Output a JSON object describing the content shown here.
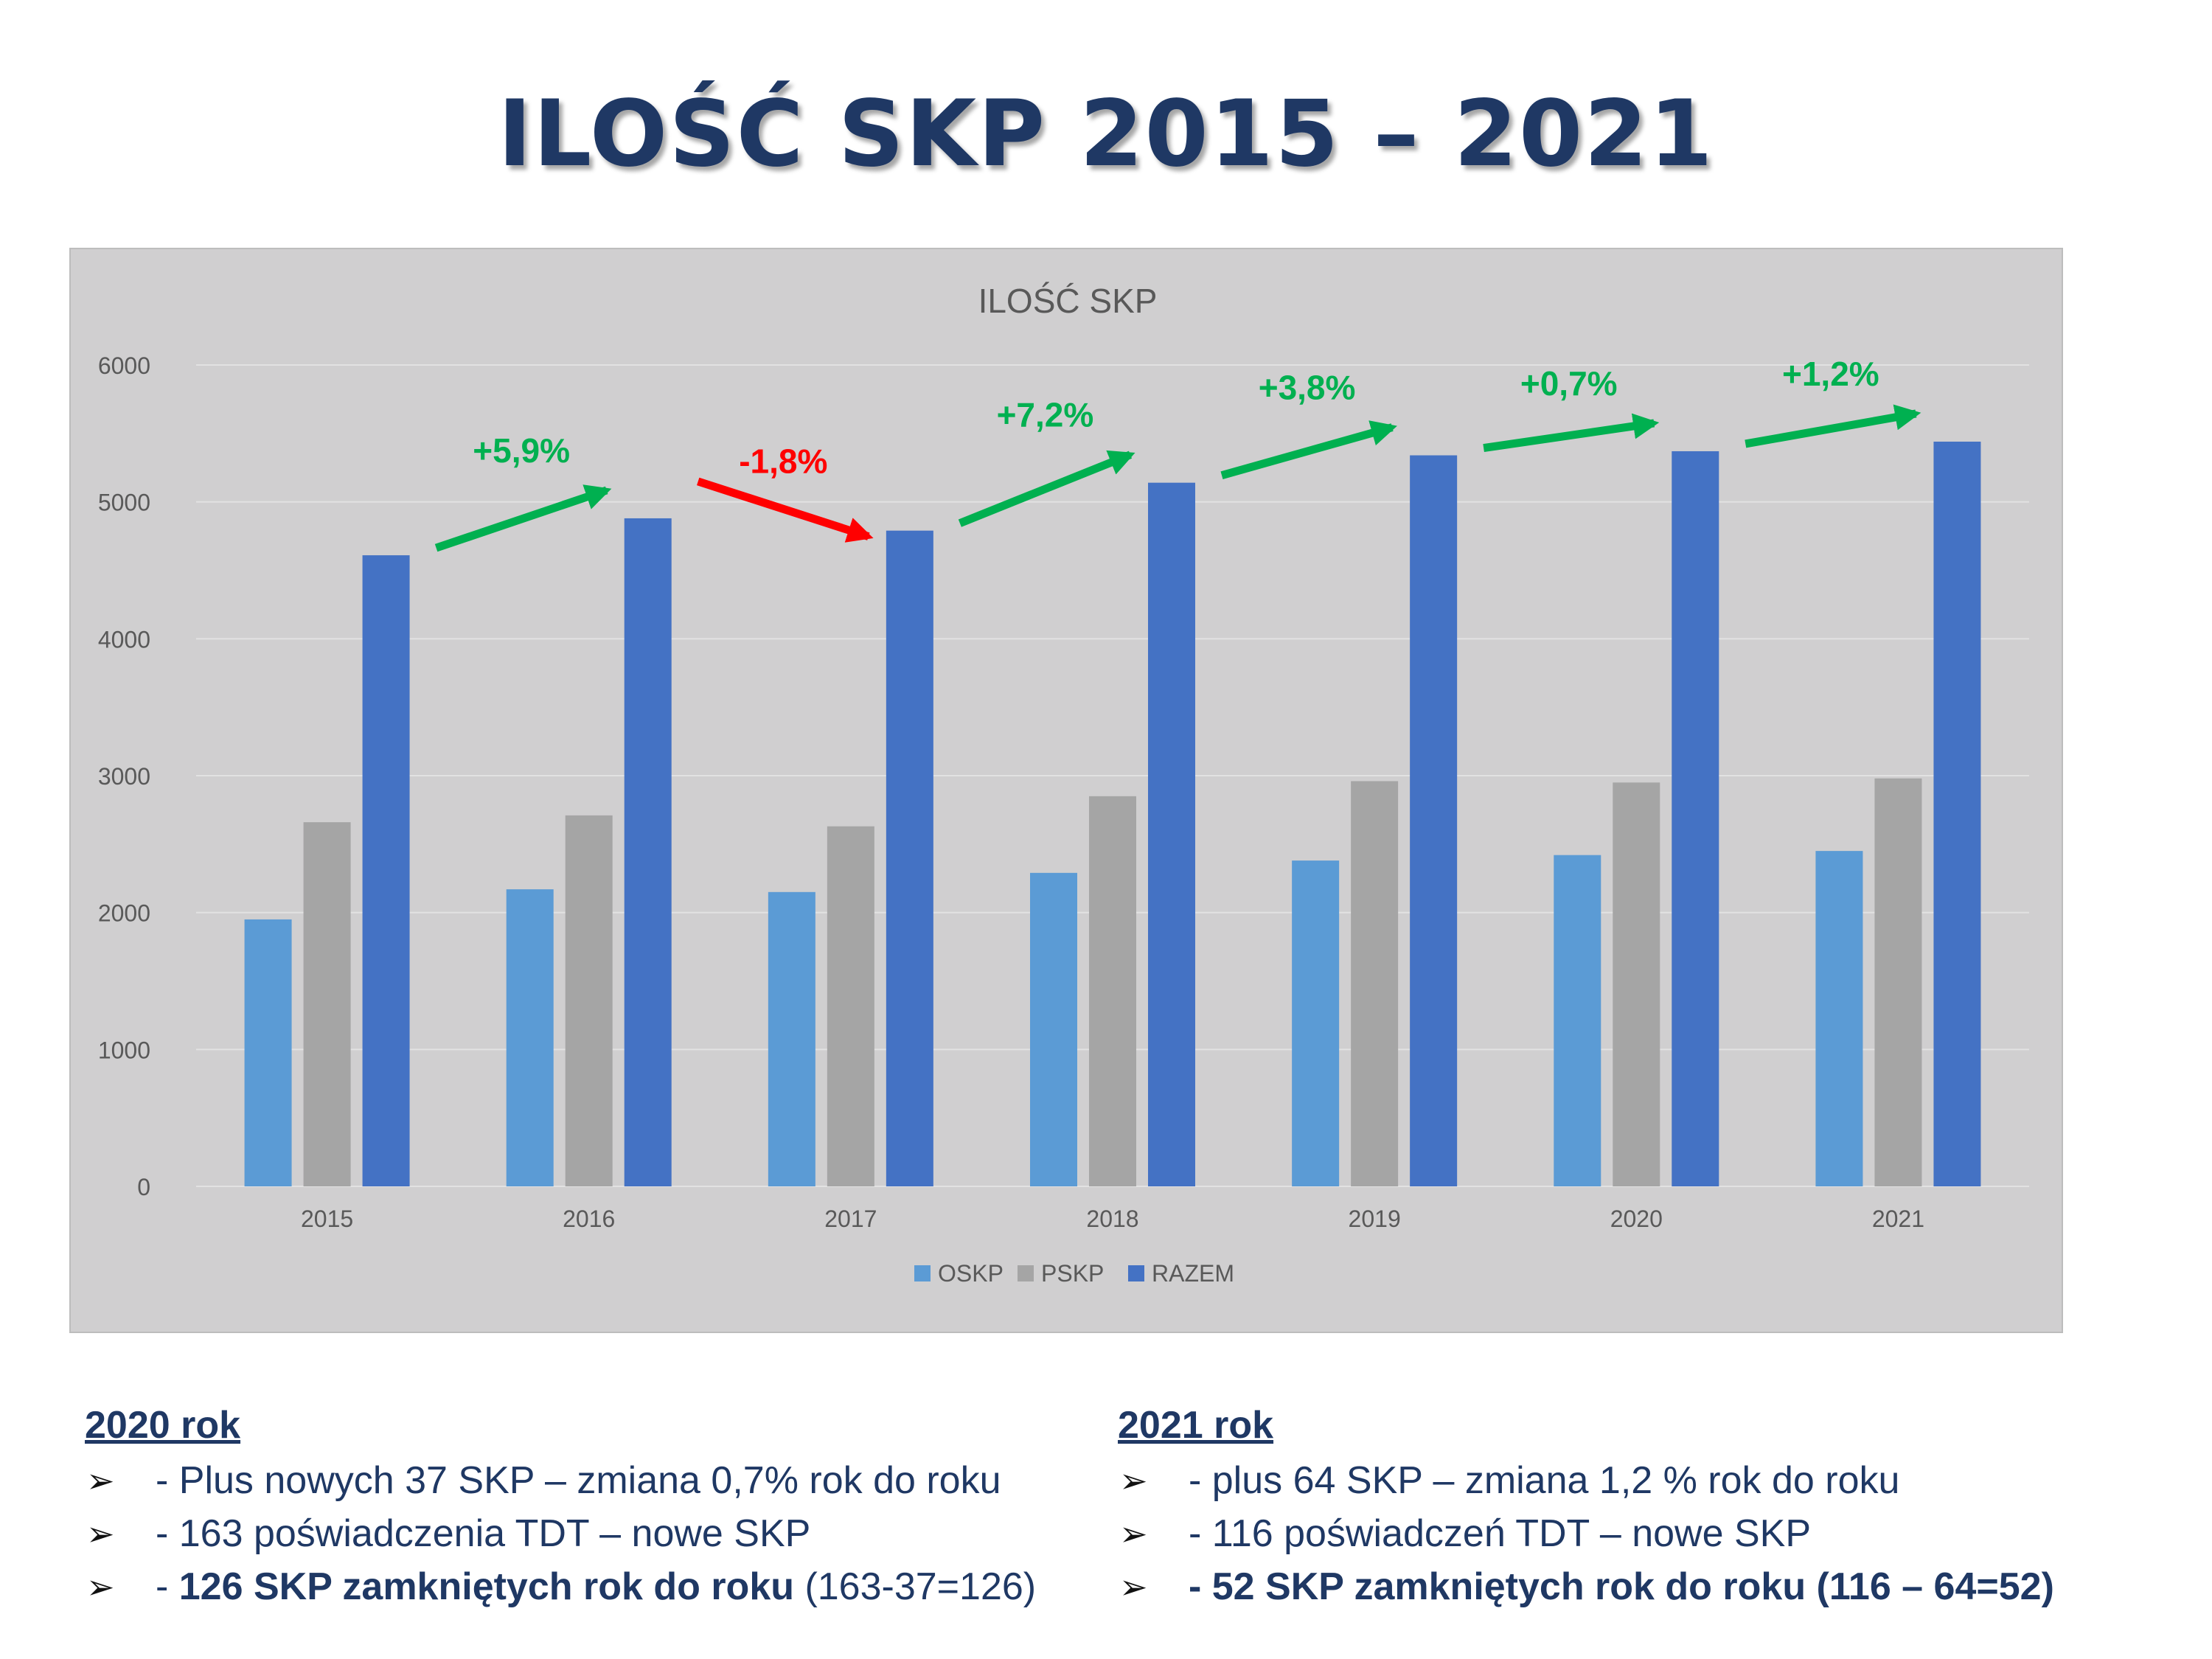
{
  "title": "ILOŚĆ SKP 2015 – 2021",
  "chart_data": {
    "type": "bar",
    "title": "ILOŚĆ SKP",
    "categories": [
      "2015",
      "2016",
      "2017",
      "2018",
      "2019",
      "2020",
      "2021"
    ],
    "series": [
      {
        "name": "OSKP",
        "color": "#5b9bd5",
        "values": [
          1950,
          2170,
          2150,
          2290,
          2380,
          2420,
          2450
        ]
      },
      {
        "name": "PSKP",
        "color": "#a5a5a5",
        "values": [
          2660,
          2710,
          2630,
          2850,
          2960,
          2950,
          2980
        ]
      },
      {
        "name": "RAZEM",
        "color": "#4472c4",
        "values": [
          4610,
          4880,
          4790,
          5140,
          5340,
          5370,
          5440
        ]
      }
    ],
    "ylim": [
      0,
      6000
    ],
    "yticks": [
      "0",
      "1000",
      "2000",
      "3000",
      "4000",
      "5000",
      "6000"
    ],
    "grid": true,
    "legend": "bottom",
    "annotations": [
      {
        "text": "+5,9%",
        "color": "#00b050"
      },
      {
        "text": "-1,8%",
        "color": "#ff0000"
      },
      {
        "text": "+7,2%",
        "color": "#00b050"
      },
      {
        "text": "+3,8%",
        "color": "#00b050"
      },
      {
        "text": "+0,7%",
        "color": "#00b050"
      },
      {
        "text": "+1,2%",
        "color": "#00b050"
      }
    ]
  },
  "notes": {
    "left": {
      "heading": "2020 rok",
      "items": [
        {
          "pre": "- Plus nowych 37 SKP – zmiana 0,7% rok do roku",
          "bold": "",
          "post": ""
        },
        {
          "pre": "- 163 poświadczenia TDT – nowe SKP",
          "bold": "",
          "post": ""
        },
        {
          "pre": "- ",
          "bold": "126 SKP zamkniętych rok do roku",
          "post": " (163-37=126)"
        }
      ]
    },
    "right": {
      "heading": "2021 rok",
      "items": [
        {
          "pre": "- plus 64 SKP – zmiana 1,2 % rok do roku",
          "bold": "",
          "post": ""
        },
        {
          "pre": "- 116 poświadczeń TDT – nowe SKP",
          "bold": "",
          "post": ""
        },
        {
          "pre": "",
          "bold": "- 52 SKP zamkniętych rok do roku (116 – 64=52)",
          "post": ""
        }
      ]
    }
  },
  "bullet_symbol": "➢"
}
